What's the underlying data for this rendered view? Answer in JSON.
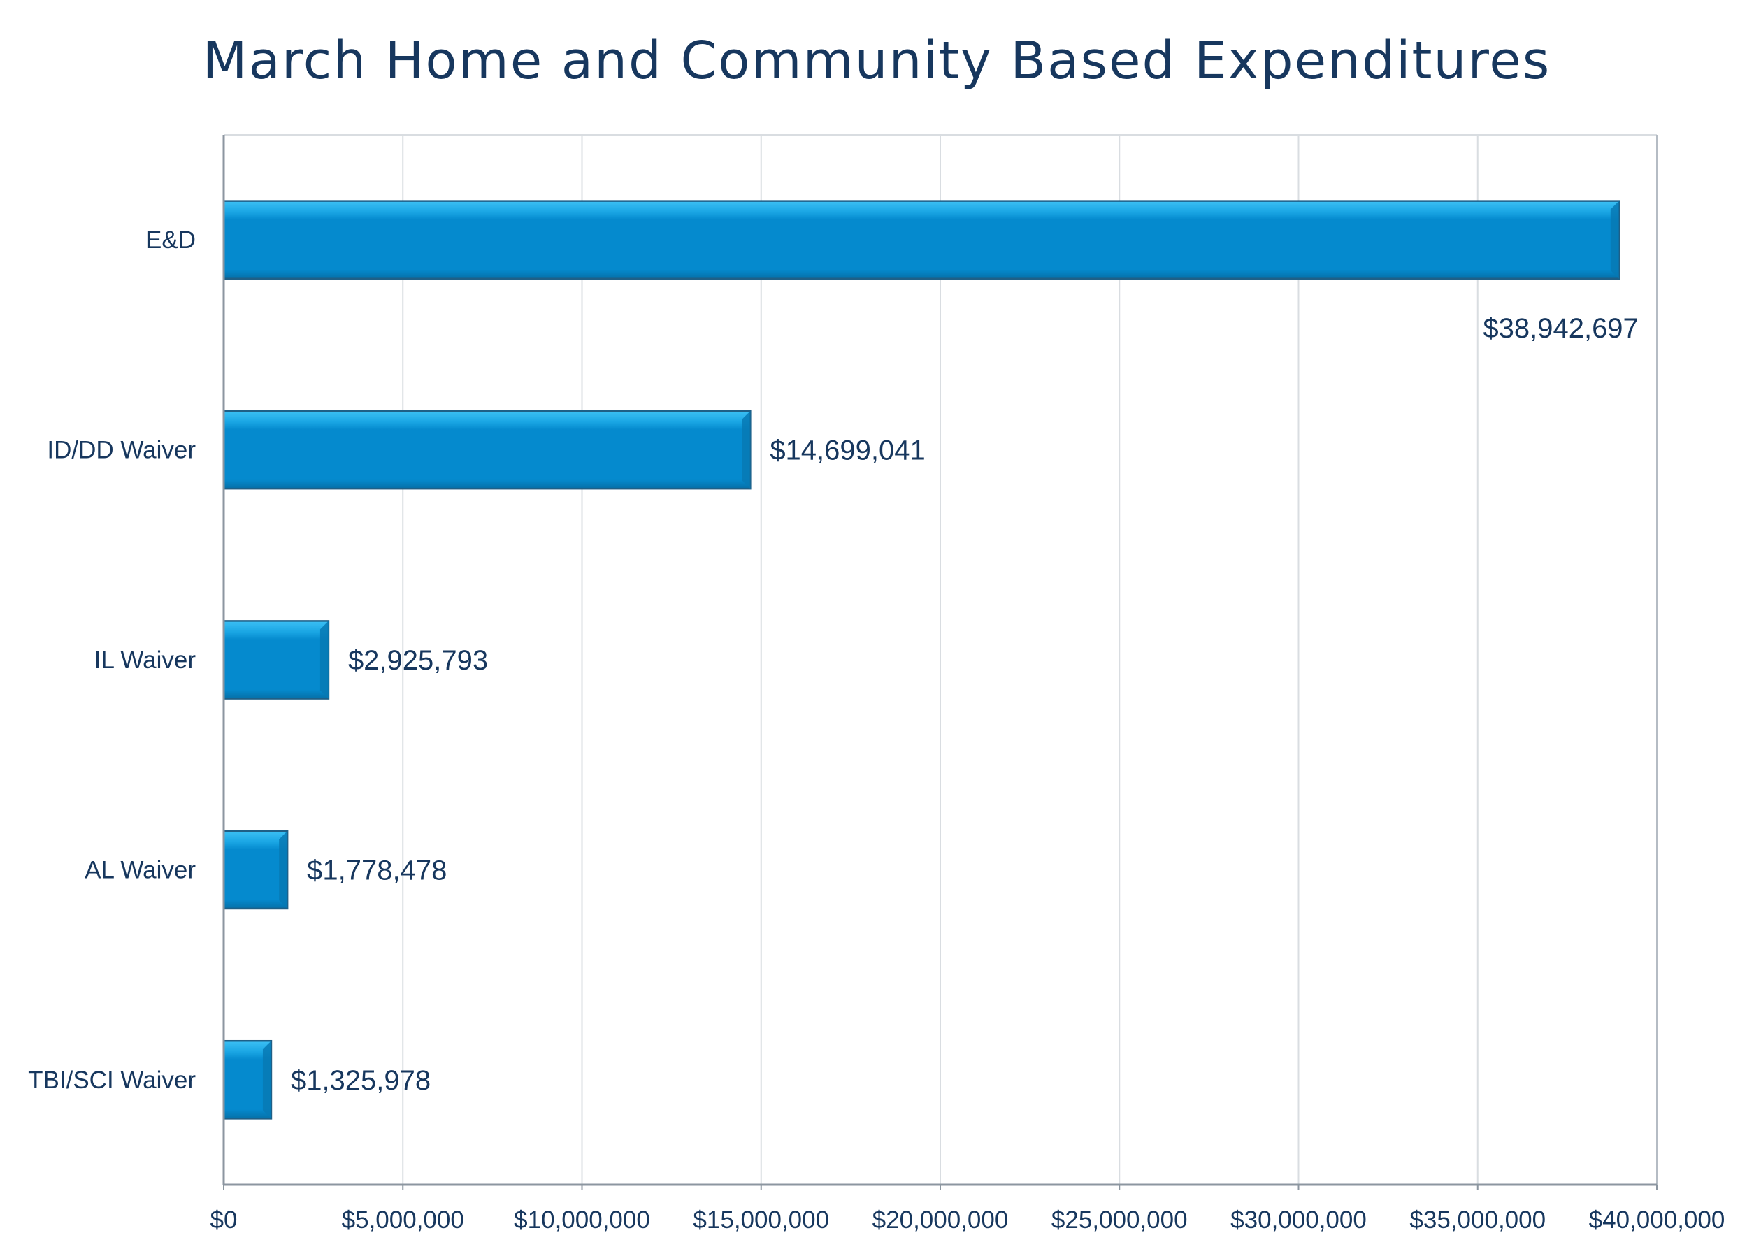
{
  "chart_data": {
    "type": "bar",
    "orientation": "horizontal",
    "title": "March Home and Community Based Expenditures",
    "xlabel": "",
    "ylabel": "",
    "categories": [
      "E&D",
      "ID/DD Waiver",
      "IL Waiver",
      "AL Waiver",
      "TBI/SCI Waiver"
    ],
    "values": [
      38942697,
      14699041,
      2925793,
      1778478,
      1325978
    ],
    "data_labels": [
      "$38,942,697",
      "$14,699,041",
      "$2,925,793",
      "$1,778,478",
      "$1,325,978"
    ],
    "xlim": [
      0,
      40000000
    ],
    "x_ticks": [
      0,
      5000000,
      10000000,
      15000000,
      20000000,
      25000000,
      30000000,
      35000000,
      40000000
    ],
    "x_tick_labels": [
      "$0",
      "$5,000,000",
      "$10,000,000",
      "$15,000,000",
      "$20,000,000",
      "$25,000,000",
      "$30,000,000",
      "$35,000,000",
      "$40,000,000"
    ],
    "grid": "vertical",
    "legend": "none",
    "colors": {
      "bar": "#058ace",
      "bar_highlight": "#3cc0f4",
      "bar_edge": "#1f5f86",
      "text": "#17375e",
      "grid": "#d9dde1",
      "axis": "#8c96a0"
    }
  }
}
